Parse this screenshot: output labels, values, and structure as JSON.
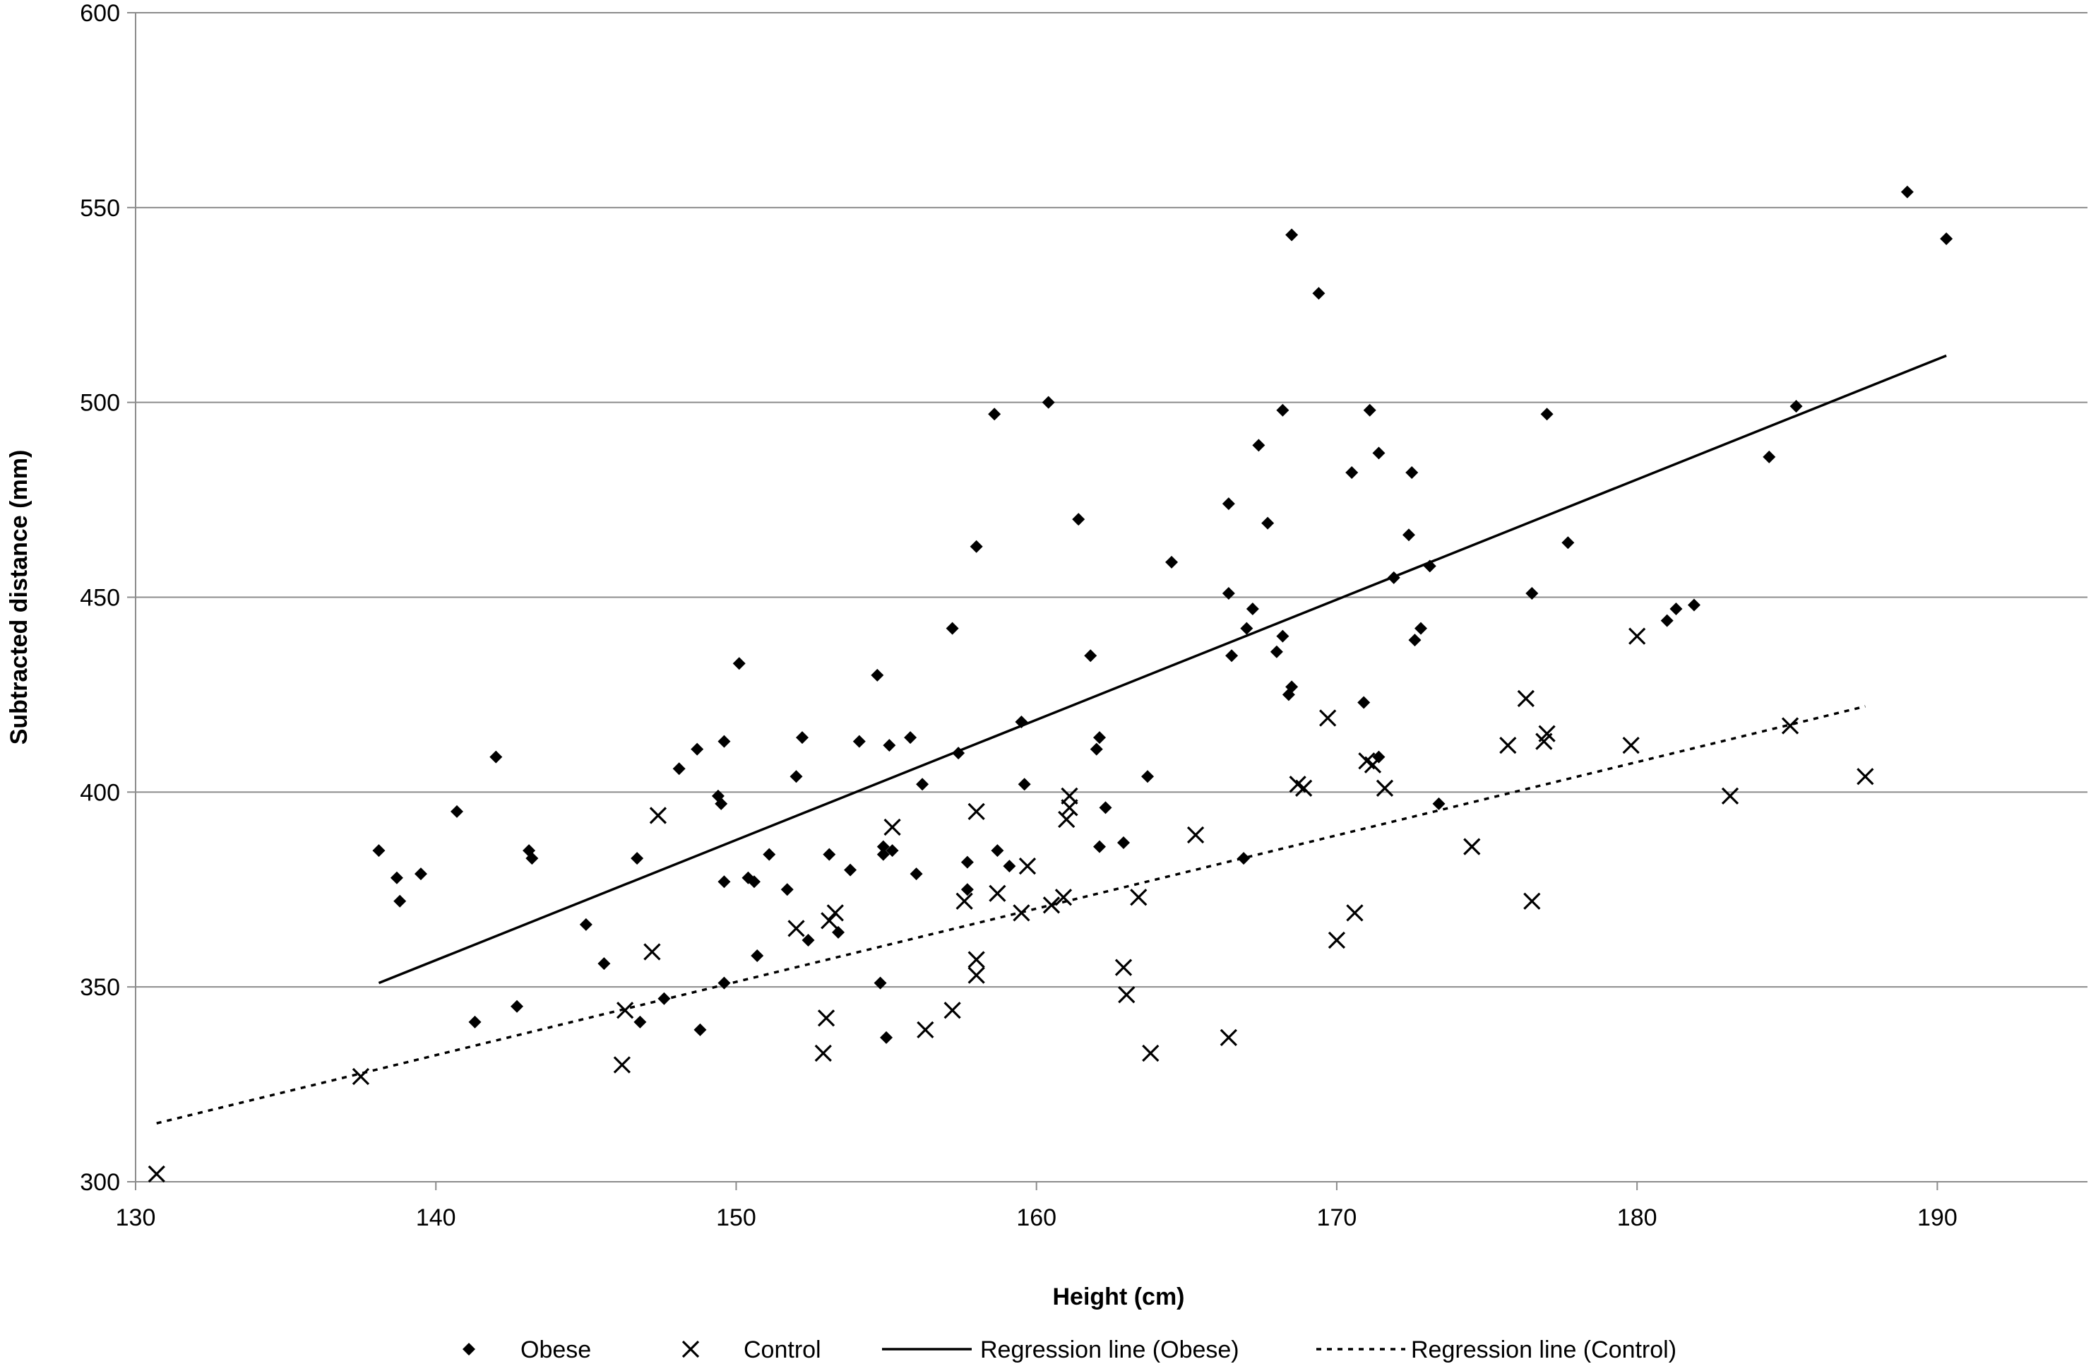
{
  "chart_data": {
    "type": "scatter",
    "title": "",
    "xlabel": "Height (cm)",
    "ylabel": "Subtracted distance (mm)",
    "xlim": [
      130,
      195
    ],
    "ylim": [
      300,
      600
    ],
    "xticks": [
      130,
      140,
      150,
      160,
      170,
      180,
      190
    ],
    "yticks": [
      300,
      350,
      400,
      450,
      500,
      550,
      600
    ],
    "xtick_labels": [
      "130",
      "140",
      "150",
      "160",
      "170",
      "180",
      "190"
    ],
    "ytick_labels": [
      "300",
      "350",
      "400",
      "450",
      "500",
      "550",
      "600"
    ],
    "grid": "horizontal",
    "legend_position": "bottom",
    "series": [
      {
        "name": "Obese",
        "marker": "diamond",
        "color": "#000000",
        "points": [
          [
            138.1,
            385
          ],
          [
            138.7,
            378
          ],
          [
            138.8,
            372
          ],
          [
            139.5,
            379
          ],
          [
            140.7,
            395
          ],
          [
            141.3,
            341
          ],
          [
            142.0,
            409
          ],
          [
            142.7,
            345
          ],
          [
            143.1,
            385
          ],
          [
            143.2,
            383
          ],
          [
            145.0,
            366
          ],
          [
            145.6,
            356
          ],
          [
            146.7,
            383
          ],
          [
            146.8,
            341
          ],
          [
            147.6,
            347
          ],
          [
            148.1,
            406
          ],
          [
            148.7,
            411
          ],
          [
            148.8,
            339
          ],
          [
            149.4,
            399
          ],
          [
            149.5,
            397
          ],
          [
            149.6,
            413
          ],
          [
            149.6,
            377
          ],
          [
            149.6,
            351
          ],
          [
            150.1,
            433
          ],
          [
            150.4,
            378
          ],
          [
            150.6,
            377
          ],
          [
            150.7,
            358
          ],
          [
            151.1,
            384
          ],
          [
            151.7,
            375
          ],
          [
            152.0,
            404
          ],
          [
            152.2,
            414
          ],
          [
            152.4,
            362
          ],
          [
            153.1,
            384
          ],
          [
            153.4,
            364
          ],
          [
            153.8,
            380
          ],
          [
            154.1,
            413
          ],
          [
            154.7,
            430
          ],
          [
            154.8,
            351
          ],
          [
            154.9,
            386
          ],
          [
            154.9,
            384
          ],
          [
            155.0,
            337
          ],
          [
            155.1,
            412
          ],
          [
            155.2,
            385
          ],
          [
            155.8,
            414
          ],
          [
            156.0,
            379
          ],
          [
            156.2,
            402
          ],
          [
            157.2,
            442
          ],
          [
            157.4,
            410
          ],
          [
            157.7,
            382
          ],
          [
            157.7,
            375
          ],
          [
            158.0,
            463
          ],
          [
            158.6,
            497
          ],
          [
            158.7,
            385
          ],
          [
            159.1,
            381
          ],
          [
            159.5,
            418
          ],
          [
            159.6,
            402
          ],
          [
            160.4,
            500
          ],
          [
            161.4,
            470
          ],
          [
            161.8,
            435
          ],
          [
            162.0,
            411
          ],
          [
            162.1,
            414
          ],
          [
            162.1,
            386
          ],
          [
            162.3,
            396
          ],
          [
            162.9,
            387
          ],
          [
            163.7,
            404
          ],
          [
            164.5,
            459
          ],
          [
            166.4,
            474
          ],
          [
            166.4,
            451
          ],
          [
            166.5,
            435
          ],
          [
            166.9,
            383
          ],
          [
            167.0,
            442
          ],
          [
            167.2,
            447
          ],
          [
            167.4,
            489
          ],
          [
            167.7,
            469
          ],
          [
            168.0,
            436
          ],
          [
            168.2,
            440
          ],
          [
            168.2,
            498
          ],
          [
            168.4,
            425
          ],
          [
            168.5,
            427
          ],
          [
            168.5,
            543
          ],
          [
            169.4,
            528
          ],
          [
            170.5,
            482
          ],
          [
            170.9,
            423
          ],
          [
            171.1,
            498
          ],
          [
            171.4,
            487
          ],
          [
            171.4,
            409
          ],
          [
            171.9,
            455
          ],
          [
            172.4,
            466
          ],
          [
            172.5,
            482
          ],
          [
            172.6,
            439
          ],
          [
            172.8,
            442
          ],
          [
            173.1,
            458
          ],
          [
            173.4,
            397
          ],
          [
            176.5,
            451
          ],
          [
            177.0,
            497
          ],
          [
            177.7,
            464
          ],
          [
            181.0,
            444
          ],
          [
            181.3,
            447
          ],
          [
            181.9,
            448
          ],
          [
            184.4,
            486
          ],
          [
            185.3,
            499
          ],
          [
            189.0,
            554
          ],
          [
            190.3,
            542
          ]
        ]
      },
      {
        "name": "Control",
        "marker": "x",
        "color": "#000000",
        "points": [
          [
            130.7,
            302
          ],
          [
            137.5,
            327
          ],
          [
            146.2,
            330
          ],
          [
            146.3,
            344
          ],
          [
            147.2,
            359
          ],
          [
            147.4,
            394
          ],
          [
            152.0,
            365
          ],
          [
            152.9,
            333
          ],
          [
            153.0,
            342
          ],
          [
            153.1,
            367
          ],
          [
            153.3,
            369
          ],
          [
            155.2,
            391
          ],
          [
            156.3,
            339
          ],
          [
            157.2,
            344
          ],
          [
            157.6,
            372
          ],
          [
            158.0,
            357
          ],
          [
            158.0,
            353
          ],
          [
            158.0,
            395
          ],
          [
            158.7,
            374
          ],
          [
            159.5,
            369
          ],
          [
            159.7,
            381
          ],
          [
            160.5,
            371
          ],
          [
            160.9,
            373
          ],
          [
            161.0,
            393
          ],
          [
            161.1,
            396
          ],
          [
            161.1,
            399
          ],
          [
            162.9,
            355
          ],
          [
            163.0,
            348
          ],
          [
            163.4,
            373
          ],
          [
            163.8,
            333
          ],
          [
            165.3,
            389
          ],
          [
            166.4,
            337
          ],
          [
            168.7,
            402
          ],
          [
            168.9,
            401
          ],
          [
            169.7,
            419
          ],
          [
            170.0,
            362
          ],
          [
            170.6,
            369
          ],
          [
            171.0,
            408
          ],
          [
            171.2,
            407
          ],
          [
            171.6,
            401
          ],
          [
            174.5,
            386
          ],
          [
            175.7,
            412
          ],
          [
            176.3,
            424
          ],
          [
            176.5,
            372
          ],
          [
            176.9,
            413
          ],
          [
            177.0,
            415
          ],
          [
            179.8,
            412
          ],
          [
            180.0,
            440
          ],
          [
            183.1,
            399
          ],
          [
            185.1,
            417
          ],
          [
            187.6,
            404
          ]
        ]
      }
    ],
    "regression_lines": [
      {
        "name": "Regression line (Obese)",
        "style": "solid",
        "color": "#000000",
        "x": [
          138.1,
          190.3
        ],
        "y": [
          351,
          512
        ]
      },
      {
        "name": "Regression line (Control)",
        "style": "dotted",
        "color": "#000000",
        "x": [
          130.7,
          187.6
        ],
        "y": [
          315,
          422
        ]
      }
    ],
    "legend": [
      {
        "label": "Obese",
        "symbol": "diamond"
      },
      {
        "label": "Control",
        "symbol": "x"
      },
      {
        "label": "Regression line (Obese)",
        "symbol": "solid-line"
      },
      {
        "label": "Regression line (Control)",
        "symbol": "dotted-line"
      }
    ]
  }
}
